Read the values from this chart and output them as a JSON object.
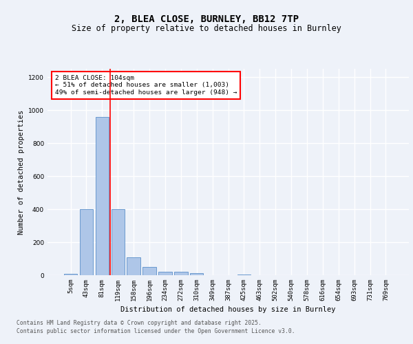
{
  "title_line1": "2, BLEA CLOSE, BURNLEY, BB12 7TP",
  "title_line2": "Size of property relative to detached houses in Burnley",
  "xlabel": "Distribution of detached houses by size in Burnley",
  "ylabel": "Number of detached properties",
  "bar_labels": [
    "5sqm",
    "43sqm",
    "81sqm",
    "119sqm",
    "158sqm",
    "196sqm",
    "234sqm",
    "272sqm",
    "310sqm",
    "349sqm",
    "387sqm",
    "425sqm",
    "463sqm",
    "502sqm",
    "540sqm",
    "578sqm",
    "616sqm",
    "654sqm",
    "693sqm",
    "731sqm",
    "769sqm"
  ],
  "bar_values": [
    10,
    400,
    960,
    400,
    110,
    50,
    22,
    20,
    12,
    0,
    0,
    5,
    0,
    0,
    0,
    0,
    0,
    0,
    0,
    0,
    0
  ],
  "bar_color": "#aec6e8",
  "bar_edgecolor": "#5b8fc9",
  "vline_x_index": 2.5,
  "vline_color": "red",
  "annotation_title": "2 BLEA CLOSE: 104sqm",
  "annotation_line1": "← 51% of detached houses are smaller (1,003)",
  "annotation_line2": "49% of semi-detached houses are larger (948) →",
  "annotation_box_color": "#ffffff",
  "annotation_box_edgecolor": "red",
  "ylim": [
    0,
    1250
  ],
  "yticks": [
    0,
    200,
    400,
    600,
    800,
    1000,
    1200
  ],
  "footer_line1": "Contains HM Land Registry data © Crown copyright and database right 2025.",
  "footer_line2": "Contains public sector information licensed under the Open Government Licence v3.0.",
  "bg_color": "#eef2f9",
  "plot_bg_color": "#eef2f9",
  "grid_color": "#ffffff",
  "title_fontsize": 10,
  "subtitle_fontsize": 8.5,
  "axis_label_fontsize": 7.5,
  "tick_fontsize": 6.5,
  "footer_fontsize": 5.8,
  "annotation_fontsize": 6.8
}
